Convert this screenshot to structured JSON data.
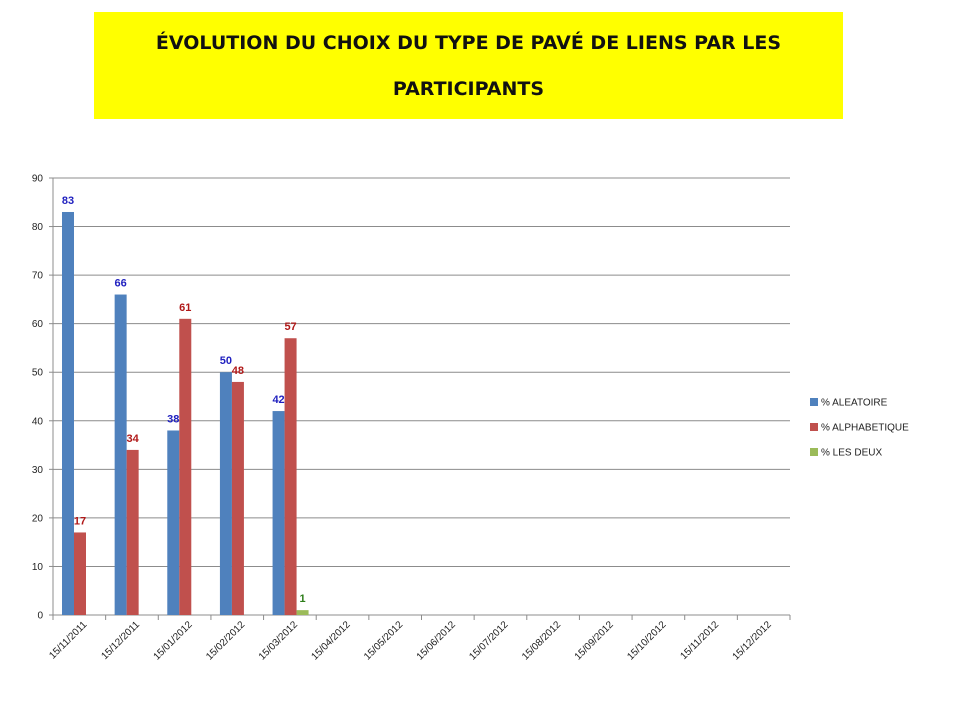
{
  "chart_data": {
    "type": "bar",
    "title": "ÉVOLUTION DU CHOIX DU TYPE DE PAVÉ DE LIENS PAR LES PARTICIPANTS",
    "categories": [
      "15/11/2011",
      "15/12/2011",
      "15/01/2012",
      "15/02/2012",
      "15/03/2012",
      "15/04/2012",
      "15/05/2012",
      "15/06/2012",
      "15/07/2012",
      "15/08/2012",
      "15/09/2012",
      "15/10/2012",
      "15/11/2012",
      "15/12/2012"
    ],
    "series": [
      {
        "name": "% ALEATOIRE",
        "color": "#4f81bd",
        "label_color": "#1f1fbf",
        "values": [
          83,
          66,
          38,
          50,
          42,
          null,
          null,
          null,
          null,
          null,
          null,
          null,
          null,
          null
        ]
      },
      {
        "name": "% ALPHABETIQUE",
        "color": "#c0504d",
        "label_color": "#b01818",
        "values": [
          17,
          34,
          61,
          48,
          57,
          null,
          null,
          null,
          null,
          null,
          null,
          null,
          null,
          null
        ]
      },
      {
        "name": "% LES DEUX",
        "color": "#9bbb59",
        "label_color": "#2e7d1a",
        "values": [
          null,
          null,
          null,
          null,
          1,
          null,
          null,
          null,
          null,
          null,
          null,
          null,
          null,
          null
        ]
      }
    ],
    "yticks": [
      "0",
      "10",
      "20",
      "30",
      "40",
      "50",
      "60",
      "70",
      "80",
      "90"
    ],
    "ylim": [
      0,
      90
    ],
    "grid": true,
    "legend": "right"
  }
}
